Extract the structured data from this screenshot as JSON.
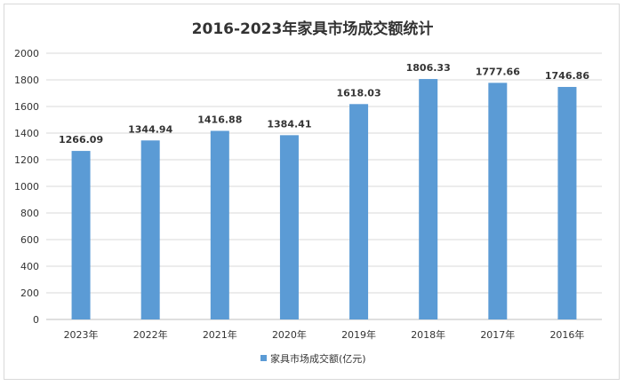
{
  "chart_data": {
    "type": "bar",
    "title": "2016-2023年家具市场成交额统计",
    "xlabel": "",
    "ylabel": "",
    "categories": [
      "2023年",
      "2022年",
      "2021年",
      "2020年",
      "2019年",
      "2018年",
      "2017年",
      "2016年"
    ],
    "series": [
      {
        "name": "家具市场成交额(亿元)",
        "values": [
          1266.09,
          1344.94,
          1416.88,
          1384.41,
          1618.03,
          1806.33,
          1777.66,
          1746.86
        ],
        "color": "#5b9bd5"
      }
    ],
    "data_labels": [
      "1266.09",
      "1344.94",
      "1416.88",
      "1384.41",
      "1618.03",
      "1806.33",
      "1777.66",
      "1746.86"
    ],
    "ylim": [
      0,
      2000
    ],
    "yticks": [
      0,
      200,
      400,
      600,
      800,
      1000,
      1200,
      1400,
      1600,
      1800,
      2000
    ],
    "grid": true,
    "legend": "bottom-center"
  },
  "colors": {
    "bar": "#5b9bd5",
    "grid": "#d9d9d9",
    "axis": "#bfbfbf",
    "text": "#333333"
  }
}
